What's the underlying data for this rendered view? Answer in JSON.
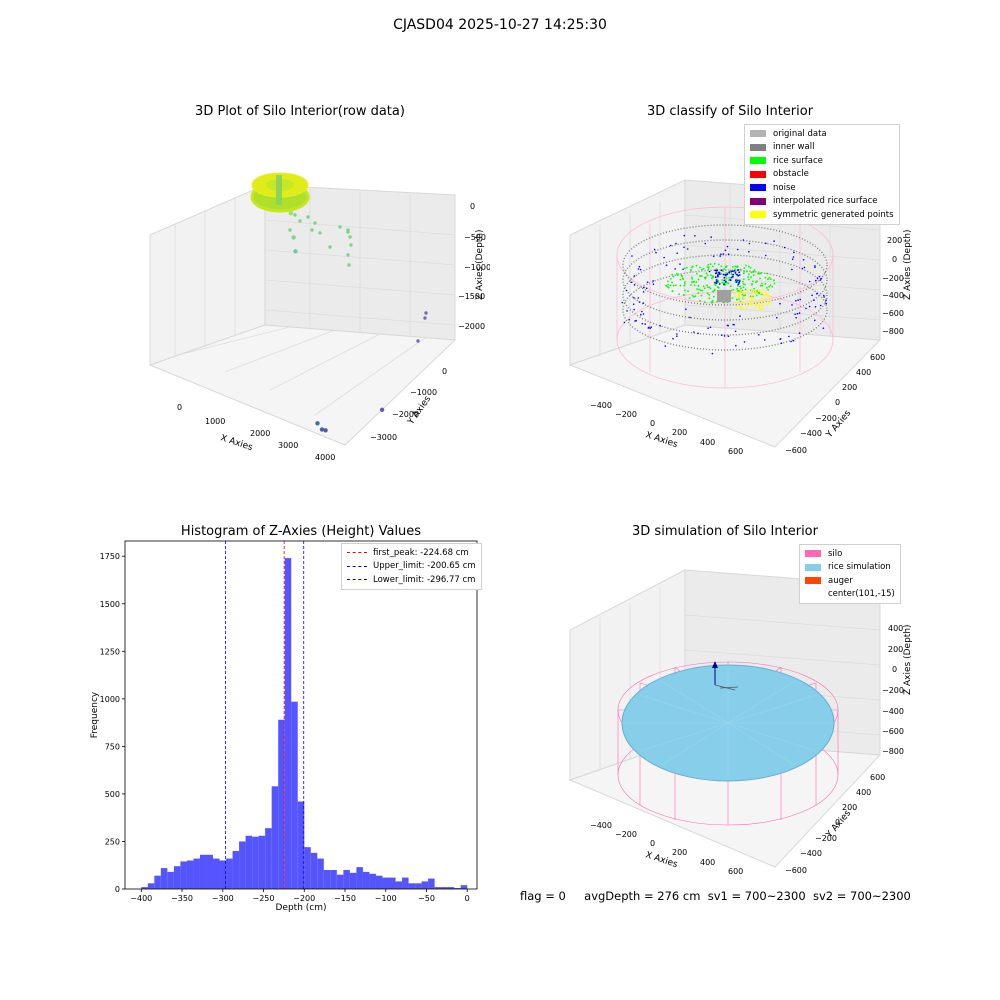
{
  "title": "CJASD04 2025-10-27 14:25:30",
  "panels": {
    "raw": {
      "title": "3D Plot of Silo Interior(row data)",
      "xlabel": "X Axies",
      "ylabel": "Y Axies",
      "zlabel": "Z Axies (Depth)",
      "xticks": [
        "0",
        "1000",
        "2000",
        "3000",
        "4000"
      ],
      "yticks": [
        "0",
        "−1000",
        "−2000",
        "−3000"
      ],
      "zticks": [
        "0",
        "−500",
        "−1000",
        "−1500",
        "−2000"
      ]
    },
    "classify": {
      "title": "3D classify of Silo Interior",
      "xlabel": "X Axies",
      "ylabel": "Y Axies",
      "zlabel": "Z Axies (Depth)",
      "xticks": [
        "−400",
        "−200",
        "0",
        "200",
        "400",
        "600"
      ],
      "yticks": [
        "600",
        "400",
        "200",
        "0",
        "−200",
        "−400",
        "−600"
      ],
      "zticks": [
        "200",
        "0",
        "−200",
        "−400",
        "−600",
        "−800"
      ],
      "legend": [
        {
          "label": "original data",
          "color": "#b3b3b3"
        },
        {
          "label": "inner wall",
          "color": "#808080"
        },
        {
          "label": "rice surface",
          "color": "#00ff00"
        },
        {
          "label": "obstacle",
          "color": "#ff0000"
        },
        {
          "label": "noise",
          "color": "#0000ff"
        },
        {
          "label": "interpolated rice surface",
          "color": "#800080"
        },
        {
          "label": "symmetric generated points",
          "color": "#ffff00"
        }
      ]
    },
    "simulation": {
      "title": "3D simulation of Silo Interior",
      "xlabel": "X Axies",
      "ylabel": "Y Axies",
      "zlabel": "Z Axies (Depth)",
      "xticks": [
        "−400",
        "−200",
        "0",
        "200",
        "400",
        "600"
      ],
      "yticks": [
        "600",
        "400",
        "200",
        "0",
        "−200",
        "−400",
        "−600"
      ],
      "zticks": [
        "400",
        "200",
        "0",
        "−200",
        "−400",
        "−600",
        "−800"
      ],
      "legend": [
        {
          "label": "silo",
          "color": "#ff69b4"
        },
        {
          "label": "rice simulation",
          "color": "#87ceeb"
        },
        {
          "label": "auger",
          "color": "#ff4500"
        },
        {
          "label": "center(101,-15)",
          "color": ""
        }
      ]
    }
  },
  "chart_data": [
    {
      "type": "scatter",
      "title": "3D Plot of Silo Interior(row data)",
      "xlabel": "X Axies",
      "ylabel": "Y Axies",
      "zlabel": "Z Axies (Depth)",
      "xlim": [
        -500,
        4500
      ],
      "ylim": [
        -3600,
        500
      ],
      "zlim": [
        -2300,
        100
      ],
      "points": [
        {
          "x": 100,
          "y": 100,
          "z": -20
        },
        {
          "x": 400,
          "y": -200,
          "z": -300
        },
        {
          "x": 600,
          "y": -400,
          "z": -450
        },
        {
          "x": 3300,
          "y": -3200,
          "z": -2200
        },
        {
          "x": 3500,
          "y": -3300,
          "z": -2250
        },
        {
          "x": 3600,
          "y": -3300,
          "z": -2250
        },
        {
          "x": 4200,
          "y": -2000,
          "z": -2150
        }
      ]
    },
    {
      "type": "scatter",
      "title": "3D classify of Silo Interior",
      "xlabel": "X Axies",
      "ylabel": "Y Axies",
      "zlabel": "Z Axies (Depth)",
      "xlim": [
        -500,
        700
      ],
      "ylim": [
        -700,
        700
      ],
      "zlim": [
        -900,
        300
      ],
      "series": [
        {
          "name": "original data"
        },
        {
          "name": "inner wall"
        },
        {
          "name": "rice surface"
        },
        {
          "name": "obstacle"
        },
        {
          "name": "noise"
        },
        {
          "name": "interpolated rice surface"
        },
        {
          "name": "symmetric generated points"
        }
      ]
    },
    {
      "type": "bar",
      "title": "Histogram of Z-Axies (Height) Values",
      "xlabel": "Depth (cm)",
      "ylabel": "Frequency",
      "xlim": [
        -420,
        12
      ],
      "ylim": [
        0,
        1830
      ],
      "xticks": [
        -400,
        -350,
        -300,
        -250,
        -200,
        -150,
        -100,
        -50,
        0
      ],
      "yticks": [
        0,
        250,
        500,
        750,
        1000,
        1250,
        1500,
        1750
      ],
      "bin_start": -400,
      "bin_width": 8,
      "values": [
        10,
        30,
        70,
        110,
        90,
        120,
        145,
        150,
        160,
        180,
        180,
        160,
        150,
        160,
        200,
        250,
        280,
        275,
        280,
        320,
        540,
        890,
        1740,
        985,
        460,
        220,
        190,
        160,
        100,
        100,
        75,
        100,
        85,
        115,
        90,
        80,
        70,
        60,
        60,
        40,
        60,
        30,
        30,
        40,
        55,
        10,
        10,
        10,
        5,
        20
      ],
      "bar_color": "#5555ff",
      "lines": [
        {
          "label": "first_peak: -224.68 cm",
          "x": -224.68,
          "color": "#ff0000"
        },
        {
          "label": "Upper_limit: -200.65 cm",
          "x": -200.65,
          "color": "#0000ff"
        },
        {
          "label": "Lower_limit: -296.77 cm",
          "x": -296.77,
          "color": "#0000ff"
        }
      ],
      "legend_position": "top-right"
    },
    {
      "type": "scatter",
      "title": "3D simulation of Silo Interior",
      "xlabel": "X Axies",
      "ylabel": "Y Axies",
      "zlabel": "Z Axies (Depth)",
      "xlim": [
        -500,
        700
      ],
      "ylim": [
        -700,
        700
      ],
      "zlim": [
        -900,
        500
      ],
      "series": [
        {
          "name": "silo"
        },
        {
          "name": "rice simulation"
        },
        {
          "name": "auger"
        },
        {
          "name": "center(101,-15)"
        }
      ]
    }
  ],
  "footer": {
    "flag": "flag = 0",
    "avg": "avgDepth = 276 cm",
    "sv1": "sv1 = 700~2300",
    "sv2": "sv2 = 700~2300"
  }
}
